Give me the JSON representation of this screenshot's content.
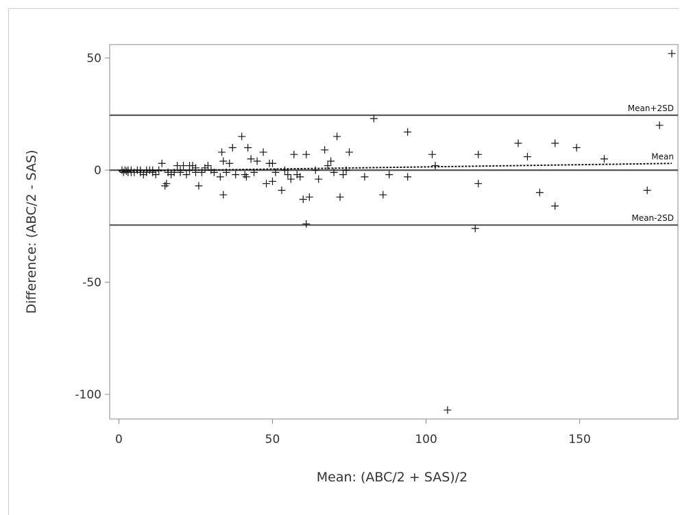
{
  "chart_data": {
    "type": "scatter",
    "title": "",
    "xlabel": "Mean: (ABC/2 + SAS)/2",
    "ylabel": "Difference: (ABC/2 - SAS)",
    "xlim": [
      -3,
      182
    ],
    "ylim": [
      -111,
      56
    ],
    "xticks": [
      0,
      50,
      100,
      150
    ],
    "yticks": [
      50,
      0,
      -50,
      -100
    ],
    "grid": false,
    "legend": "none",
    "marker": "+",
    "reference_lines": [
      {
        "name": "Mean+2SD",
        "y": 24.5,
        "style": "solid"
      },
      {
        "name": "Mean-2SD",
        "y": -24.5,
        "style": "solid"
      },
      {
        "name": "",
        "y": 0,
        "style": "solid"
      }
    ],
    "mean_line": {
      "name": "Mean",
      "style": "dotted",
      "x": [
        0,
        180
      ],
      "y": [
        -0.5,
        3
      ]
    },
    "series": [
      {
        "points": [
          [
            1,
            0
          ],
          [
            1.5,
            -1
          ],
          [
            2,
            0
          ],
          [
            2.5,
            -0.5
          ],
          [
            3,
            0
          ],
          [
            3,
            -1
          ],
          [
            4,
            0
          ],
          [
            4,
            -1
          ],
          [
            5,
            -1
          ],
          [
            6,
            0
          ],
          [
            7,
            0
          ],
          [
            7,
            -1
          ],
          [
            8,
            -2
          ],
          [
            9,
            0
          ],
          [
            9,
            -1
          ],
          [
            10,
            0
          ],
          [
            11,
            0
          ],
          [
            11,
            -1
          ],
          [
            12,
            -2
          ],
          [
            13,
            0
          ],
          [
            14,
            3
          ],
          [
            15,
            -7
          ],
          [
            15.5,
            -6
          ],
          [
            16,
            -1
          ],
          [
            17,
            -2
          ],
          [
            18,
            -1
          ],
          [
            19,
            2
          ],
          [
            20,
            0
          ],
          [
            20,
            -1
          ],
          [
            21,
            2
          ],
          [
            22,
            -2
          ],
          [
            23,
            2
          ],
          [
            23,
            0
          ],
          [
            24,
            2
          ],
          [
            25,
            1
          ],
          [
            25,
            -1
          ],
          [
            26,
            -7
          ],
          [
            27,
            -1
          ],
          [
            28,
            1
          ],
          [
            29,
            2
          ],
          [
            30,
            0
          ],
          [
            31,
            -1
          ],
          [
            33,
            -3
          ],
          [
            33.5,
            8
          ],
          [
            34,
            4
          ],
          [
            34,
            -11
          ],
          [
            35,
            -1
          ],
          [
            36,
            3
          ],
          [
            37,
            10
          ],
          [
            38,
            -2
          ],
          [
            40,
            15
          ],
          [
            41,
            -2
          ],
          [
            41.5,
            -3
          ],
          [
            42,
            10
          ],
          [
            43,
            5
          ],
          [
            44,
            -1
          ],
          [
            45,
            4
          ],
          [
            47,
            8
          ],
          [
            48,
            -6
          ],
          [
            49,
            3
          ],
          [
            50,
            -5
          ],
          [
            50,
            3
          ],
          [
            51,
            -1
          ],
          [
            53,
            -9
          ],
          [
            54,
            0
          ],
          [
            55,
            -2
          ],
          [
            56,
            -4
          ],
          [
            57,
            7
          ],
          [
            58,
            -2
          ],
          [
            59,
            -3
          ],
          [
            60,
            -13
          ],
          [
            61,
            7
          ],
          [
            61,
            -24
          ],
          [
            62,
            -12
          ],
          [
            64,
            0
          ],
          [
            65,
            -4
          ],
          [
            67,
            9
          ],
          [
            68,
            2
          ],
          [
            69,
            4
          ],
          [
            70,
            -1
          ],
          [
            71,
            15
          ],
          [
            72,
            -12
          ],
          [
            73,
            -2
          ],
          [
            74,
            0
          ],
          [
            75,
            8
          ],
          [
            80,
            -3
          ],
          [
            83,
            23
          ],
          [
            86,
            -11
          ],
          [
            88,
            -2
          ],
          [
            94,
            17
          ],
          [
            94,
            -3
          ],
          [
            102,
            7
          ],
          [
            103,
            2
          ],
          [
            107,
            -107
          ],
          [
            116,
            -26
          ],
          [
            117,
            7
          ],
          [
            117,
            -6
          ],
          [
            130,
            12
          ],
          [
            133,
            6
          ],
          [
            137,
            -10
          ],
          [
            142,
            12
          ],
          [
            142,
            -16
          ],
          [
            149,
            10
          ],
          [
            158,
            5
          ],
          [
            172,
            -9
          ],
          [
            176,
            20
          ],
          [
            180,
            52
          ]
        ]
      }
    ]
  }
}
